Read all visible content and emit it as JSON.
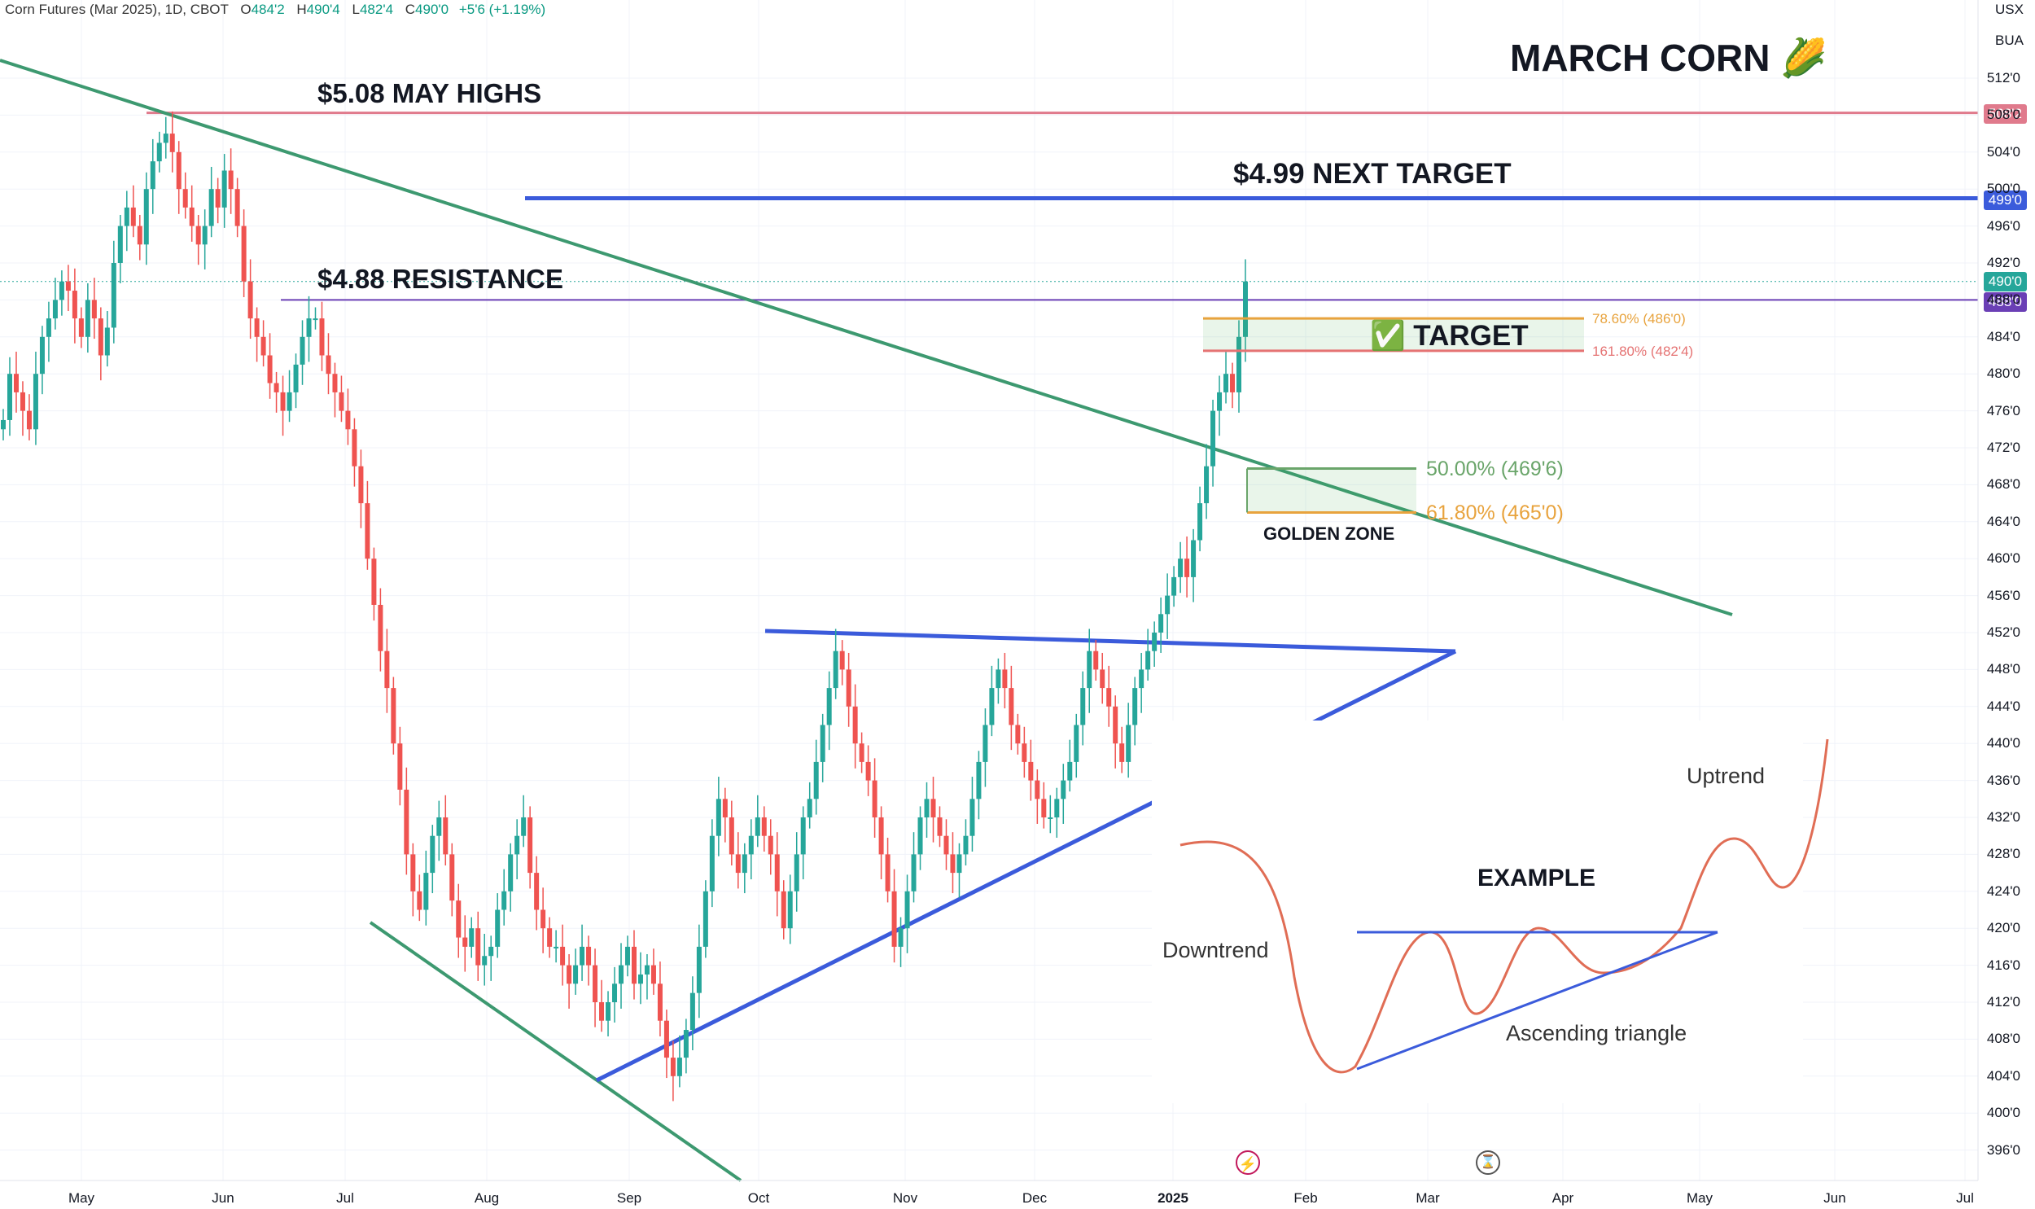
{
  "header": {
    "symbol": "Corn Futures (Mar 2025), 1D, CBOT",
    "open_label": "O",
    "open": "484'2",
    "high_label": "H",
    "high": "490'4",
    "low_label": "L",
    "low": "482'4",
    "close_label": "C",
    "close": "490'0",
    "change": "+5'6 (+1.19%)"
  },
  "axis_units": [
    "USX",
    "BUA"
  ],
  "colors": {
    "up": "#26a69a",
    "down": "#ef5350",
    "trendline": "#3d9970",
    "triangle": "#3b5bdb",
    "may_high": "#e07a8c",
    "resistance": "#6a3fb5",
    "fib_orange": "#e8a33d",
    "fib_red": "#e57373",
    "fib_green": "#6aa56a"
  },
  "annotations": {
    "title": "MARCH CORN 🌽",
    "may_highs": "$5.08 MAY HIGHS",
    "next_target": "$4.99 NEXT TARGET",
    "resistance": "$4.88 RESISTANCE",
    "target": "✅ TARGET",
    "golden_zone": "GOLDEN ZONE"
  },
  "fib_labels": {
    "f786": "78.60% (486'0)",
    "f1618": "161.80% (482'4)",
    "f50": "50.00% (469'6)",
    "f618": "61.80% (465'0)"
  },
  "price_tags": {
    "may_high": "508'2",
    "target": "499'0",
    "last": "490'0",
    "resistance": "488'0"
  },
  "example": {
    "title": "EXAMPLE",
    "downtrend": "Downtrend",
    "uptrend": "Uptrend",
    "triangle": "Ascending triangle"
  },
  "chart_data": {
    "type": "candlestick",
    "title": "Corn Futures (Mar 2025), 1D, CBOT",
    "y_unit": "USX/BUA",
    "ylim": [
      392,
      520
    ],
    "y_ticks": [
      "512'0",
      "508'0",
      "504'0",
      "500'0",
      "496'0",
      "492'0",
      "488'0",
      "484'0",
      "480'0",
      "476'0",
      "472'0",
      "468'0",
      "464'0",
      "460'0",
      "456'0",
      "452'0",
      "448'0",
      "444'0",
      "440'0",
      "436'0",
      "432'0",
      "428'0",
      "424'0",
      "420'0",
      "416'0",
      "412'0",
      "408'0",
      "404'0",
      "400'0",
      "396'0"
    ],
    "x_ticks": [
      "May",
      "Jun",
      "Jul",
      "Aug",
      "Sep",
      "Oct",
      "Nov",
      "Dec",
      "2025",
      "Feb",
      "Mar",
      "Apr",
      "May",
      "Jun",
      "Jul"
    ],
    "closes_approx": [
      475,
      480,
      478,
      476,
      474,
      480,
      484,
      486,
      488,
      490,
      489,
      486,
      484,
      488,
      486,
      482,
      485,
      492,
      496,
      498,
      496,
      494,
      500,
      503,
      505,
      506,
      504,
      500,
      498,
      496,
      494,
      496,
      500,
      498,
      502,
      500,
      496,
      490,
      486,
      484,
      482,
      479,
      478,
      476,
      478,
      481,
      484,
      486,
      486,
      482,
      480,
      478,
      476,
      474,
      470,
      466,
      460,
      455,
      450,
      446,
      440,
      435,
      428,
      424,
      422,
      426,
      430,
      432,
      428,
      423,
      419,
      418,
      420,
      416,
      417,
      418,
      422,
      424,
      428,
      430,
      432,
      426,
      422,
      420,
      418,
      418,
      416,
      414,
      416,
      418,
      416,
      412,
      410,
      412,
      414,
      416,
      418,
      414,
      415,
      416,
      414,
      410,
      406,
      404,
      406,
      409,
      413,
      418,
      424,
      430,
      434,
      432,
      428,
      426,
      428,
      430,
      432,
      430,
      428,
      424,
      420,
      424,
      428,
      432,
      434,
      438,
      442,
      446,
      450,
      448,
      444,
      440,
      438,
      436,
      432,
      428,
      424,
      418,
      420,
      424,
      428,
      432,
      434,
      432,
      430,
      428,
      426,
      428,
      430,
      434,
      438,
      442,
      446,
      448,
      446,
      442,
      440,
      438,
      436,
      434,
      432,
      432,
      434,
      436,
      438,
      442,
      446,
      450,
      448,
      446,
      444,
      440,
      438,
      442,
      446,
      448,
      450,
      452,
      454,
      456,
      458,
      460,
      458,
      462,
      466,
      470,
      476,
      478,
      480,
      478,
      484,
      490
    ],
    "levels": {
      "may_highs": 508.25,
      "next_target": 499.0,
      "resistance": 488.0,
      "last": 490.0,
      "fib_78_6": 486.0,
      "fib_161_8": 482.5,
      "fib_50": 469.75,
      "fib_61_8": 465.0
    }
  }
}
